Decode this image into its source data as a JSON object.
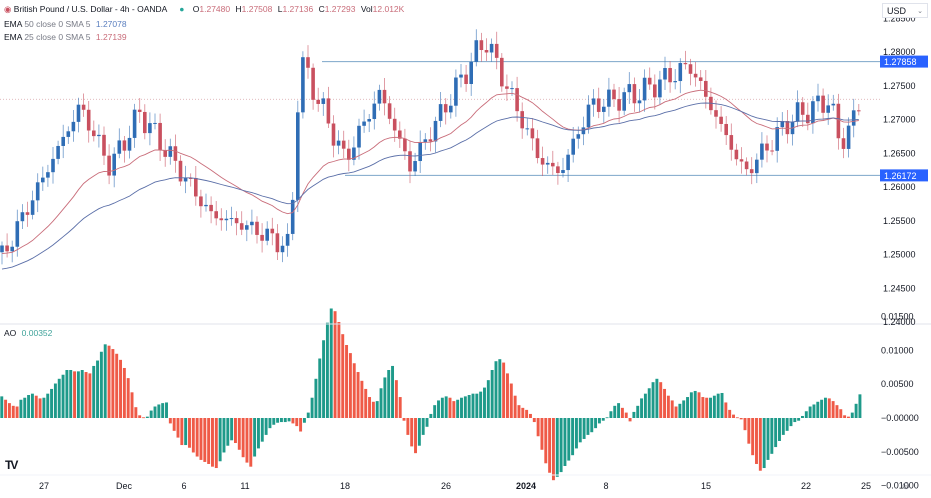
{
  "header": {
    "symbol_title": "British Pound / U.S. Dollar - 4h - OANDA",
    "status_dot_color": "#26a69a",
    "ohlc": {
      "open_label": "O",
      "open": "1.27480",
      "high_label": "H",
      "high": "1.27508",
      "low_label": "L",
      "low": "1.27136",
      "close_label": "C",
      "close": "1.27293",
      "vol_label": "Vol",
      "vol": "12.012K"
    }
  },
  "indicators": [
    {
      "name": "EMA",
      "params": "50 close 0 SMA 5",
      "value": "1.27078",
      "color": "#5b6fa8"
    },
    {
      "name": "EMA",
      "params": "25 close 0 SMA 5",
      "value": "1.27139",
      "color": "#c96d7a"
    }
  ],
  "ao": {
    "name": "AO",
    "value": "0.00352"
  },
  "currency_selector": {
    "label": "USD"
  },
  "price_axis": {
    "ticks": [
      "1.28500",
      "1.28000",
      "1.27500",
      "1.27000",
      "1.26500",
      "1.26000",
      "1.25500",
      "1.25000",
      "1.24500",
      "1.24000"
    ],
    "resistance_label": "1.27858",
    "support_label": "1.26172"
  },
  "ao_axis": {
    "ticks": [
      "0.01500",
      "0.01000",
      "0.00500",
      "−0.00000",
      "−0.00500",
      "−0.01000"
    ]
  },
  "time_axis": {
    "ticks": [
      {
        "label": "27",
        "x": 44,
        "bold": false
      },
      {
        "label": "Dec",
        "x": 124,
        "bold": false
      },
      {
        "label": "6",
        "x": 184,
        "bold": false
      },
      {
        "label": "11",
        "x": 245,
        "bold": false
      },
      {
        "label": "18",
        "x": 345,
        "bold": false
      },
      {
        "label": "26",
        "x": 446,
        "bold": false
      },
      {
        "label": "2024",
        "x": 526,
        "bold": true
      },
      {
        "label": "8",
        "x": 606,
        "bold": false
      },
      {
        "label": "15",
        "x": 706,
        "bold": false
      },
      {
        "label": "22",
        "x": 806,
        "bold": false
      },
      {
        "label": "25",
        "x": 866,
        "bold": false
      }
    ],
    "settings_icon": "⊙"
  },
  "colors": {
    "up_candle": "#2f6db5",
    "down_candle": "#c9505f",
    "level_line": "#7da6c9",
    "label_bg": "#2962ff",
    "ao_up": "#1e9a8a",
    "ao_down": "#ef5a47"
  },
  "chart_data": [
    {
      "type": "candlestick",
      "title": "British Pound / U.S. Dollar - 4h - OANDA",
      "xlabel": "",
      "ylabel": "USD",
      "ylim": [
        1.24,
        1.285
      ],
      "x_ticks": [
        "27",
        "Dec",
        "6",
        "11",
        "18",
        "26",
        "2024",
        "8",
        "15",
        "22",
        "25"
      ],
      "horizontal_levels": {
        "resistance": 1.27858,
        "support": 1.26172
      },
      "last_price_dotted_line": 1.273,
      "last_bar": {
        "open": 1.2748,
        "high": 1.27508,
        "low": 1.27136,
        "close": 1.27293,
        "volume": "12.012K"
      },
      "series_closes_approx": {
        "name": "GBP/USD close (approx. swing points)",
        "points": [
          {
            "date": "Nov 23",
            "value": 1.249
          },
          {
            "date": "Nov 28",
            "value": 1.272
          },
          {
            "date": "Nov 30",
            "value": 1.263
          },
          {
            "date": "Dec 1",
            "value": 1.271
          },
          {
            "date": "Dec 7",
            "value": 1.256
          },
          {
            "date": "Dec 11",
            "value": 1.254
          },
          {
            "date": "Dec 13",
            "value": 1.251
          },
          {
            "date": "Dec 14",
            "value": 1.279
          },
          {
            "date": "Dec 19",
            "value": 1.264
          },
          {
            "date": "Dec 20",
            "value": 1.274
          },
          {
            "date": "Dec 22",
            "value": 1.263
          },
          {
            "date": "Dec 28",
            "value": 1.282
          },
          {
            "date": "Jan 2",
            "value": 1.264
          },
          {
            "date": "Jan 3",
            "value": 1.262
          },
          {
            "date": "Jan 5",
            "value": 1.272
          },
          {
            "date": "Jan 9",
            "value": 1.274
          },
          {
            "date": "Jan 12",
            "value": 1.278
          },
          {
            "date": "Jan 17",
            "value": 1.262
          },
          {
            "date": "Jan 19",
            "value": 1.27
          },
          {
            "date": "Jan 23",
            "value": 1.273
          },
          {
            "date": "Jan 24",
            "value": 1.266
          },
          {
            "date": "Jan 25",
            "value": 1.2729
          }
        ]
      },
      "moving_averages": [
        {
          "name": "EMA 50",
          "last": 1.27078
        },
        {
          "name": "EMA 25",
          "last": 1.27139
        }
      ]
    },
    {
      "type": "bar",
      "title": "AO",
      "ylim": [
        -0.0115,
        0.0175
      ],
      "last_value": 0.00352,
      "y_ticks": [
        0.015,
        0.01,
        0.005,
        0.0,
        -0.005,
        -0.01
      ],
      "values": [
        0.0032,
        0.0027,
        0.0022,
        0.0018,
        0.0017,
        0.0027,
        0.003,
        0.0034,
        0.0036,
        0.0033,
        0.0029,
        0.003,
        0.0036,
        0.0043,
        0.0051,
        0.0058,
        0.0064,
        0.0071,
        0.0071,
        0.0069,
        0.0069,
        0.0071,
        0.0068,
        0.0066,
        0.0077,
        0.0085,
        0.0098,
        0.0109,
        0.0107,
        0.0102,
        0.0095,
        0.0086,
        0.0074,
        0.0059,
        0.0038,
        0.0016,
        0.0004,
        0.0001,
        0.0002,
        0.0011,
        0.0017,
        0.002,
        0.0022,
        0.0023,
        -0.0008,
        -0.0019,
        -0.0029,
        -0.004,
        -0.004,
        -0.0044,
        -0.0051,
        -0.0057,
        -0.0062,
        -0.0065,
        -0.0068,
        -0.0072,
        -0.0074,
        -0.0064,
        -0.0051,
        -0.0041,
        -0.0033,
        -0.0037,
        -0.0047,
        -0.0058,
        -0.0066,
        -0.0072,
        -0.0057,
        -0.0045,
        -0.0035,
        -0.0025,
        -0.0015,
        -0.001,
        -0.0007,
        -0.0006,
        -0.0006,
        -0.0005,
        -0.0008,
        -0.0012,
        -0.002,
        -0.0007,
        0.0008,
        0.003,
        0.0058,
        0.0088,
        0.0115,
        0.0141,
        0.0162,
        0.0158,
        0.0142,
        0.0124,
        0.0108,
        0.0096,
        0.0081,
        0.0068,
        0.0055,
        0.0043,
        0.0031,
        0.0024,
        0.0025,
        0.0044,
        0.006,
        0.0071,
        0.0077,
        0.0056,
        0.0031,
        -0.0004,
        -0.0025,
        -0.0042,
        -0.0052,
        -0.0041,
        -0.0025,
        -0.0013,
        0.0006,
        0.0019,
        0.0026,
        0.003,
        0.0032,
        0.003,
        0.0025,
        0.0027,
        0.003,
        0.0032,
        0.0034,
        0.0036,
        0.0036,
        0.0039,
        0.0045,
        0.0056,
        0.0071,
        0.0084,
        0.0087,
        0.0082,
        0.0066,
        0.0051,
        0.0033,
        0.0019,
        0.0015,
        0.0012,
        0.0006,
        -0.0006,
        -0.0027,
        -0.0047,
        -0.0067,
        -0.0081,
        -0.0092,
        -0.0087,
        -0.008,
        -0.0071,
        -0.0063,
        -0.0055,
        -0.0045,
        -0.0036,
        -0.0031,
        -0.0025,
        -0.0021,
        -0.0015,
        -0.0008,
        -0.0004,
        0.0001,
        0.001,
        0.0018,
        0.0022,
        0.0015,
        0.0008,
        -0.0005,
        0.0009,
        0.0018,
        0.0029,
        0.0036,
        0.0044,
        0.0053,
        0.0058,
        0.0053,
        0.0043,
        0.0033,
        0.0026,
        0.0017,
        0.0021,
        0.0026,
        0.0031,
        0.0038,
        0.004,
        0.0038,
        0.0031,
        0.003,
        0.003,
        0.0033,
        0.0036,
        0.0037,
        0.0023,
        0.0012,
        0.0005,
        0.0001,
        -0.0002,
        -0.0018,
        -0.0038,
        -0.0055,
        -0.0068,
        -0.0078,
        -0.0074,
        -0.0062,
        -0.0053,
        -0.0043,
        -0.0034,
        -0.0025,
        -0.0019,
        -0.0012,
        -0.0006,
        -0.0004,
        0.0003,
        0.001,
        0.0017,
        0.002,
        0.0024,
        0.0027,
        0.003,
        0.0029,
        0.0025,
        0.0019,
        0.0013,
        0.0004,
        0.0002,
        0.0008,
        0.0021,
        0.0035
      ],
      "colors": {
        "up": "#1e9a8a",
        "down": "#ef5a47"
      }
    }
  ]
}
